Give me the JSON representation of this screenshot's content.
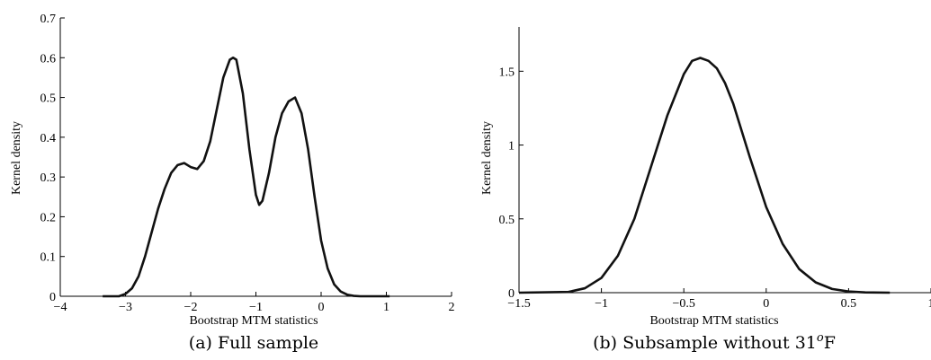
{
  "chart_data": [
    {
      "type": "line",
      "caption": "(a)  Full sample",
      "xlabel": "Bootstrap MTM statistics",
      "ylabel": "Kernel density",
      "xlim": [
        -4,
        2
      ],
      "ylim": [
        0,
        0.7
      ],
      "xticks": [
        "−4",
        "−3",
        "−2",
        "−1",
        "0",
        "1",
        "2"
      ],
      "xtick_values": [
        -4,
        -3,
        -2,
        -1,
        0,
        1,
        2
      ],
      "yticks": [
        "0",
        "0.1",
        "0.2",
        "0.3",
        "0.4",
        "0.5",
        "0.6",
        "0.7"
      ],
      "ytick_values": [
        0,
        0.1,
        0.2,
        0.3,
        0.4,
        0.5,
        0.6,
        0.7
      ],
      "grid": false,
      "series": [
        {
          "x": [
            -3.35,
            -3.1,
            -3.0,
            -2.9,
            -2.8,
            -2.7,
            -2.6,
            -2.5,
            -2.4,
            -2.3,
            -2.2,
            -2.1,
            -2.0,
            -1.9,
            -1.8,
            -1.7,
            -1.6,
            -1.5,
            -1.4,
            -1.35,
            -1.3,
            -1.2,
            -1.1,
            -1.0,
            -0.95,
            -0.9,
            -0.8,
            -0.7,
            -0.6,
            -0.5,
            -0.4,
            -0.3,
            -0.2,
            -0.1,
            0.0,
            0.1,
            0.2,
            0.3,
            0.4,
            0.5,
            0.6,
            0.8,
            1.05
          ],
          "y": [
            0.0,
            0.0,
            0.006,
            0.02,
            0.05,
            0.1,
            0.16,
            0.22,
            0.27,
            0.31,
            0.33,
            0.335,
            0.325,
            0.32,
            0.34,
            0.39,
            0.47,
            0.55,
            0.595,
            0.6,
            0.595,
            0.51,
            0.37,
            0.255,
            0.23,
            0.24,
            0.31,
            0.4,
            0.46,
            0.49,
            0.5,
            0.46,
            0.37,
            0.25,
            0.14,
            0.07,
            0.03,
            0.012,
            0.004,
            0.001,
            0.0,
            0.0,
            0.0
          ]
        }
      ]
    },
    {
      "type": "line",
      "caption": "(b)  Subsample without 31°F",
      "caption_main": "(b)  Subsample without 31",
      "caption_sup": "o",
      "caption_unit": "F",
      "xlabel": "Bootstrap MTM statistics",
      "ylabel": "Kernel density",
      "xlim": [
        -1.5,
        1
      ],
      "ylim": [
        0,
        1.8
      ],
      "xticks": [
        "−1.5",
        "−1",
        "−0.5",
        "0",
        "0.5",
        "1"
      ],
      "xtick_values": [
        -1.5,
        -1,
        -0.5,
        0,
        0.5,
        1
      ],
      "yticks": [
        "0",
        "0.5",
        "1",
        "1.5"
      ],
      "ytick_values": [
        0,
        0.5,
        1,
        1.5
      ],
      "grid": false,
      "series": [
        {
          "x": [
            -1.5,
            -1.2,
            -1.1,
            -1.0,
            -0.9,
            -0.8,
            -0.7,
            -0.6,
            -0.5,
            -0.45,
            -0.4,
            -0.35,
            -0.3,
            -0.25,
            -0.2,
            -0.1,
            0.0,
            0.1,
            0.2,
            0.3,
            0.4,
            0.5,
            0.6,
            0.75
          ],
          "y": [
            0.0,
            0.005,
            0.03,
            0.1,
            0.25,
            0.5,
            0.85,
            1.2,
            1.48,
            1.57,
            1.59,
            1.57,
            1.52,
            1.42,
            1.28,
            0.92,
            0.58,
            0.33,
            0.16,
            0.07,
            0.025,
            0.008,
            0.002,
            0.0
          ]
        }
      ]
    }
  ]
}
